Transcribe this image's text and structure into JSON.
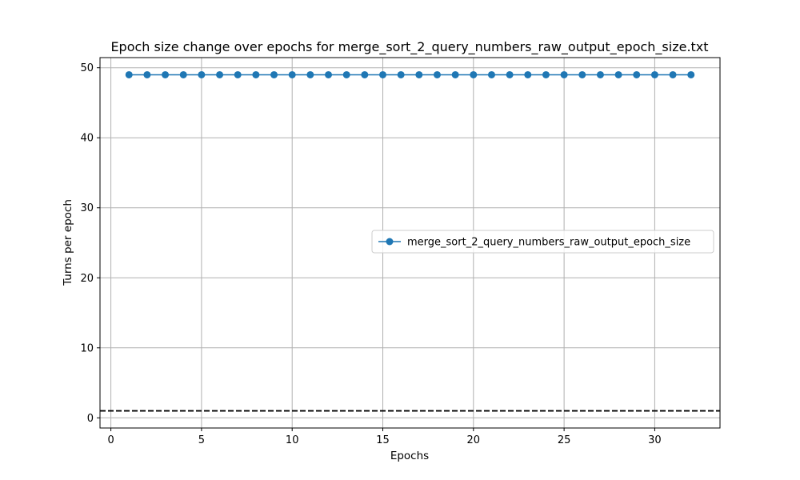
{
  "chart_data": {
    "type": "line",
    "title": "Epoch size change over epochs for merge_sort_2_query_numbers_raw_output_epoch_size.txt",
    "xlabel": "Epochs",
    "ylabel": "Turns per epoch",
    "xlim": [
      -0.6,
      33.6
    ],
    "ylim": [
      -1.45,
      51.45
    ],
    "xticks": [
      0,
      5,
      10,
      15,
      20,
      25,
      30
    ],
    "yticks": [
      0,
      10,
      20,
      30,
      40,
      50
    ],
    "grid": true,
    "legend_position": "center-right",
    "x": [
      1,
      2,
      3,
      4,
      5,
      6,
      7,
      8,
      9,
      10,
      11,
      12,
      13,
      14,
      15,
      16,
      17,
      18,
      19,
      20,
      21,
      22,
      23,
      24,
      25,
      26,
      27,
      28,
      29,
      30,
      31,
      32
    ],
    "series": [
      {
        "name": "merge_sort_2_query_numbers_raw_output_epoch_size",
        "color": "#1f77b4",
        "marker": "circle",
        "values": [
          49,
          49,
          49,
          49,
          49,
          49,
          49,
          49,
          49,
          49,
          49,
          49,
          49,
          49,
          49,
          49,
          49,
          49,
          49,
          49,
          49,
          49,
          49,
          49,
          49,
          49,
          49,
          49,
          49,
          49,
          49,
          49
        ]
      }
    ],
    "reference_lines": [
      {
        "orientation": "horizontal",
        "y": 1,
        "style": "dashed",
        "color": "#000000"
      }
    ]
  }
}
